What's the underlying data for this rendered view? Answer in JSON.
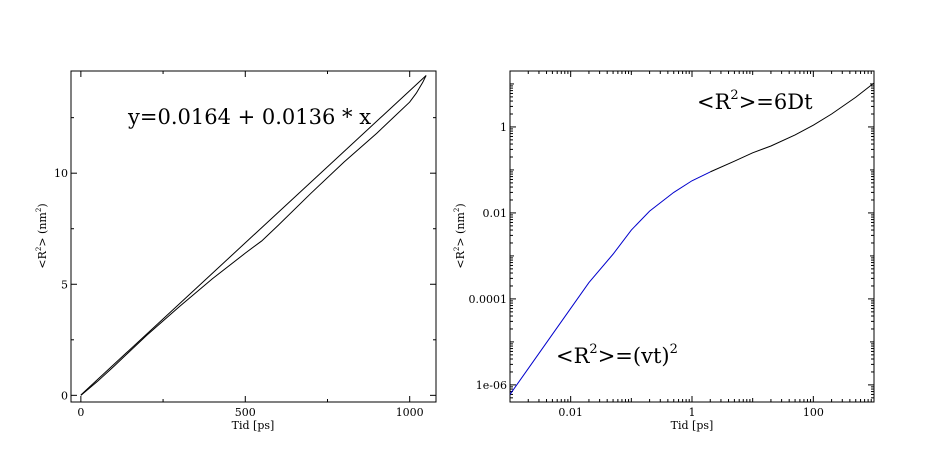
{
  "chart_data": [
    {
      "type": "line",
      "xlabel": "Tid [ps]",
      "ylabel": {
        "main": "<R",
        "exp": "2",
        "mid": "> (nm",
        "exp2": "2",
        "end": ")"
      },
      "xlim": [
        -30,
        1080
      ],
      "ylim": [
        -0.3,
        14.6
      ],
      "xticks": [
        0,
        500,
        1000
      ],
      "xtick_labels": [
        "0",
        "500",
        "1000"
      ],
      "yticks": [
        0,
        5,
        10
      ],
      "ytick_labels": [
        "0",
        "5",
        "10"
      ],
      "grid": false,
      "annotation": "y=0.0164 + 0.0136 * x",
      "series": [
        {
          "color": "#000000",
          "x": [
            0,
            50,
            100,
            200,
            300,
            400,
            500,
            550,
            600,
            700,
            800,
            900,
            950,
            1000,
            1020,
            1040,
            1050
          ],
          "y": [
            0.0,
            0.62,
            1.3,
            2.7,
            4.0,
            5.25,
            6.4,
            6.95,
            7.65,
            9.1,
            10.5,
            11.8,
            12.5,
            13.2,
            13.6,
            14.1,
            14.4
          ]
        },
        {
          "color": "#000000",
          "x": [
            0,
            1050
          ],
          "y": [
            0.0164,
            14.3964
          ]
        }
      ]
    },
    {
      "type": "line",
      "xscale": "log",
      "yscale": "log",
      "xlabel": "Tid [ps]",
      "ylabel": {
        "main": "<R",
        "exp": "2",
        "mid": "> (nm",
        "exp2": "2",
        "end": ")"
      },
      "xlim": [
        0.001,
        1000
      ],
      "ylim": [
        4e-07,
        20
      ],
      "xticks": [
        0.01,
        1,
        100
      ],
      "xtick_labels": [
        "0.01",
        "1",
        "100"
      ],
      "yticks": [
        1e-06,
        0.0001,
        0.01,
        1
      ],
      "ytick_labels": [
        "1e-06",
        "0.0001",
        "0.01",
        "1"
      ],
      "grid": false,
      "annotations": [
        {
          "main": "<R",
          "exp": "2",
          "rest": ">=6Dt"
        },
        {
          "main": "<R",
          "exp": "2",
          "rest": ">=(vt)",
          "exp2": "2"
        }
      ],
      "series": [
        {
          "color": "#0000cc",
          "x": [
            0.001,
            0.002,
            0.005,
            0.01,
            0.02,
            0.05,
            0.1,
            0.2,
            0.5,
            1,
            2
          ],
          "y": [
            6e-07,
            2.4e-06,
            1.5e-05,
            6e-05,
            0.00024,
            0.0011,
            0.004,
            0.011,
            0.03,
            0.056,
            0.09
          ]
        },
        {
          "color": "#000000",
          "x": [
            2,
            5,
            10,
            20,
            50,
            100,
            200,
            500,
            1000
          ],
          "y": [
            0.09,
            0.16,
            0.25,
            0.36,
            0.65,
            1.1,
            2.0,
            4.9,
            10.5
          ]
        }
      ]
    }
  ]
}
